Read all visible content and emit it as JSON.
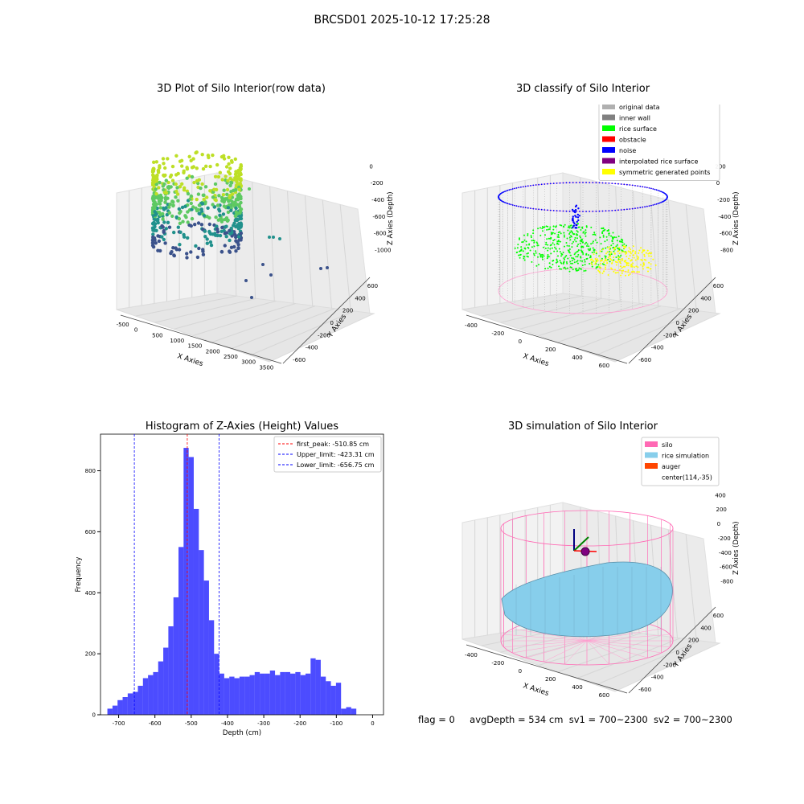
{
  "suptitle": "BRCSD01 2025-10-12 17:25:28",
  "panels": {
    "tl": {
      "title": "3D Plot of Silo Interior(row data)",
      "xlabel": "X Axies",
      "ylabel": "Y Axies",
      "zlabel": "Z Axies (Depth)",
      "xticks": [
        "-500",
        "0",
        "500",
        "1000",
        "1500",
        "2000",
        "2500",
        "3000",
        "3500"
      ],
      "yticks": [
        "-600",
        "-400",
        "-200",
        "0",
        "200",
        "400",
        "600"
      ],
      "zticks": [
        "0",
        "-200",
        "-400",
        "-600",
        "-800",
        "-1000"
      ]
    },
    "tr": {
      "title": "3D classify of Silo Interior",
      "xlabel": "X Axies",
      "ylabel": "Y Axies",
      "zlabel": "Z Axies (Depth)",
      "xticks": [
        "-400",
        "-200",
        "0",
        "200",
        "400",
        "600"
      ],
      "yticks": [
        "-600",
        "-400",
        "-200",
        "0",
        "200",
        "400",
        "600"
      ],
      "zticks": [
        "200",
        "0",
        "-200",
        "-400",
        "-600",
        "-800"
      ],
      "legend": [
        {
          "label": "original data",
          "color": "#b0b0b0"
        },
        {
          "label": "inner wall",
          "color": "#808080"
        },
        {
          "label": "rice surface",
          "color": "#00ff00"
        },
        {
          "label": "obstacle",
          "color": "#ff0000"
        },
        {
          "label": "noise",
          "color": "#0000ff"
        },
        {
          "label": "interpolated rice surface",
          "color": "#800080"
        },
        {
          "label": "symmetric generated points",
          "color": "#ffff00"
        }
      ]
    },
    "br": {
      "title": "3D simulation of Silo Interior",
      "xlabel": "X Axies",
      "ylabel": "Y Axies",
      "zlabel": "Z Axies (Depth)",
      "xticks": [
        "-400",
        "-200",
        "0",
        "200",
        "400",
        "600"
      ],
      "yticks": [
        "-600",
        "-400",
        "-200",
        "0",
        "200",
        "400",
        "600"
      ],
      "zticks": [
        "400",
        "200",
        "0",
        "-200",
        "-400",
        "-600",
        "-800"
      ],
      "legend": [
        {
          "label": "silo",
          "color": "#ff69b4"
        },
        {
          "label": "rice simulation",
          "color": "#87ceeb"
        },
        {
          "label": "auger",
          "color": "#ff4500"
        },
        {
          "label": "center(114,-35)",
          "color": ""
        }
      ]
    }
  },
  "footer": {
    "flag": "flag = 0",
    "avg": "avgDepth = 534 cm",
    "sv1": "sv1 = 700~2300",
    "sv2": "sv2 = 700~2300"
  },
  "chart_data": {
    "type": "bar",
    "title": "Histogram of Z-Axies (Height) Values",
    "xlabel": "Depth (cm)",
    "ylabel": "Frequency",
    "xlim": [
      -750,
      30
    ],
    "ylim": [
      0,
      920
    ],
    "xticks": [
      -700,
      -600,
      -500,
      -400,
      -300,
      -200,
      -100,
      0
    ],
    "yticks": [
      0,
      200,
      400,
      600,
      800
    ],
    "bin_width": 14,
    "bar_color": "#0000ff",
    "x": [
      -724,
      -710,
      -696,
      -682,
      -668,
      -654,
      -640,
      -626,
      -612,
      -598,
      -584,
      -570,
      -556,
      -542,
      -528,
      -514,
      -500,
      -486,
      -472,
      -458,
      -444,
      -430,
      -416,
      -402,
      -388,
      -374,
      -360,
      -346,
      -332,
      -318,
      -304,
      -290,
      -276,
      -262,
      -248,
      -234,
      -220,
      -206,
      -192,
      -178,
      -164,
      -150,
      -136,
      -122,
      -108,
      -94,
      -80,
      -66,
      -52,
      -38,
      -24,
      -10
    ],
    "values": [
      20,
      30,
      48,
      58,
      70,
      75,
      95,
      120,
      130,
      140,
      175,
      220,
      290,
      385,
      550,
      875,
      845,
      675,
      540,
      440,
      310,
      200,
      135,
      120,
      125,
      120,
      125,
      125,
      130,
      140,
      135,
      135,
      145,
      130,
      140,
      140,
      135,
      140,
      130,
      135,
      185,
      180,
      125,
      110,
      95,
      105,
      20,
      25,
      20,
      0,
      0,
      0
    ],
    "vlines": [
      {
        "label": "first_peak: -510.85 cm",
        "value": -510.85,
        "color": "#ff0000"
      },
      {
        "label": "Upper_limit: -423.31 cm",
        "value": -423.31,
        "color": "#0000ff"
      },
      {
        "label": "Lower_limit: -656.75 cm",
        "value": -656.75,
        "color": "#0000ff"
      }
    ]
  }
}
